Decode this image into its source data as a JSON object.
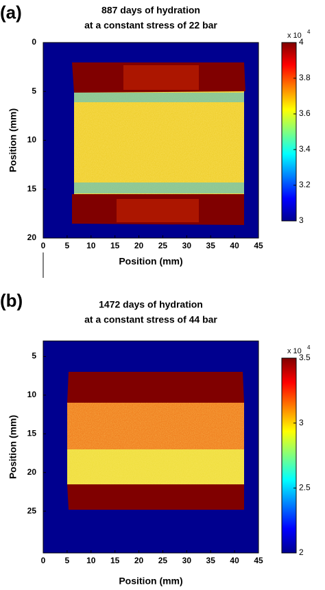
{
  "chart_data": [
    {
      "type": "heatmap",
      "panel_label": "(a)",
      "title": [
        "887 days of hydration",
        "at a constant stress of 22 bar"
      ],
      "xlabel": "Position (mm)",
      "ylabel": "Position (mm)",
      "xlim": [
        0,
        45
      ],
      "xticks": [
        0,
        5,
        10,
        15,
        20,
        25,
        30,
        35,
        40,
        45
      ],
      "ylim": [
        0,
        20
      ],
      "yticks": [
        0,
        5,
        10,
        15,
        20
      ],
      "y_inverted": true,
      "colorbar_lim": [
        3,
        4
      ],
      "colorbar_ticks": [
        3,
        3.2,
        3.4,
        3.6,
        3.8,
        4
      ],
      "colorbar_scale": "x 10",
      "colorbar_scale_exponent": "4"
    },
    {
      "type": "heatmap",
      "panel_label": "(b)",
      "title": [
        "1472 days of hydration",
        "at a constant stress of 44 bar"
      ],
      "xlabel": "Position (mm)",
      "ylabel": "Position (mm)",
      "xlim": [
        0,
        45
      ],
      "xticks": [
        0,
        5,
        10,
        15,
        20,
        25,
        30,
        35,
        40,
        45
      ],
      "ylim": [
        3,
        30.4
      ],
      "yticks": [
        5,
        10,
        15,
        20,
        25
      ],
      "y_inverted": true,
      "colorbar_lim": [
        2,
        3.5
      ],
      "colorbar_ticks": [
        2,
        2.5,
        3,
        3.5
      ],
      "colorbar_scale": "x 10",
      "colorbar_scale_exponent": "4"
    }
  ]
}
